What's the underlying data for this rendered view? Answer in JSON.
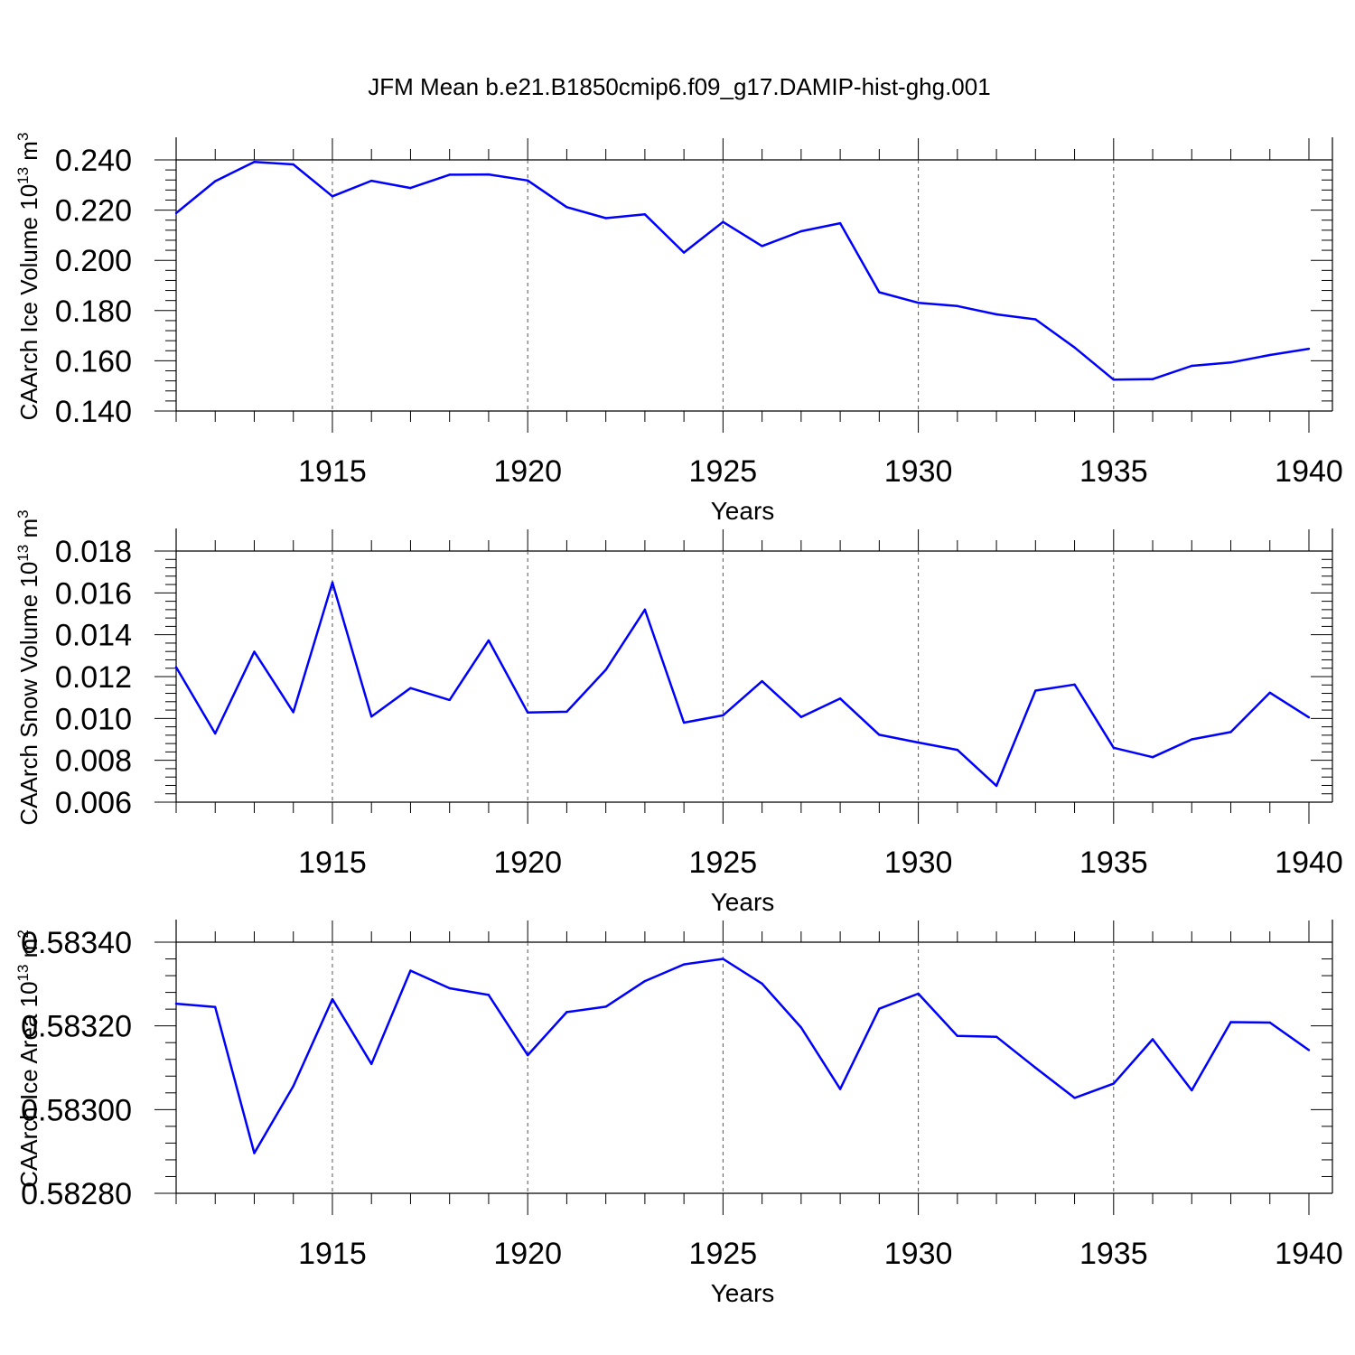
{
  "figure": {
    "title": "JFM Mean b.e21.B1850cmip6.f09_g17.DAMIP-hist-ghg.001",
    "line_color": "#0000ff"
  },
  "chart_data": [
    {
      "type": "line",
      "title": "JFM Mean b.e21.B1850cmip6.f09_g17.DAMIP-hist-ghg.001",
      "xlabel": "Years",
      "ylabel": "CAArch Ice Volume 10",
      "ylabel_sup1": "13",
      "ylabel_mid": " m",
      "ylabel_sup2": "3",
      "xlim": [
        1911,
        1940
      ],
      "ylim": [
        0.14,
        0.24
      ],
      "yticks": [
        0.14,
        0.16,
        0.18,
        0.2,
        0.22,
        0.24
      ],
      "ytick_labels": [
        "0.140",
        "0.160",
        "0.180",
        "0.200",
        "0.220",
        "0.240"
      ],
      "xticks": [
        1915,
        1920,
        1925,
        1930,
        1935,
        1940
      ],
      "xtick_labels": [
        "1915",
        "1920",
        "1925",
        "1930",
        "1935",
        "1940"
      ],
      "grid": "vertical dashed at major x ticks",
      "series": [
        {
          "name": "CAArch Ice Volume",
          "x": [
            1911,
            1912,
            1913,
            1914,
            1915,
            1916,
            1917,
            1918,
            1919,
            1920,
            1921,
            1922,
            1923,
            1924,
            1925,
            1926,
            1927,
            1928,
            1929,
            1930,
            1931,
            1932,
            1933,
            1934,
            1935,
            1936,
            1937,
            1938,
            1939,
            1940
          ],
          "values": [
            0.2188,
            0.2315,
            0.2392,
            0.2382,
            0.2255,
            0.2317,
            0.2288,
            0.2341,
            0.2342,
            0.2318,
            0.2212,
            0.2168,
            0.2183,
            0.2031,
            0.2153,
            0.2057,
            0.2116,
            0.2148,
            0.1873,
            0.1831,
            0.1818,
            0.1785,
            0.1765,
            0.1653,
            0.1525,
            0.1527,
            0.158,
            0.1593,
            0.1623,
            0.1648
          ]
        }
      ]
    },
    {
      "type": "line",
      "xlabel": "Years",
      "ylabel": "CAArch Snow Volume 10",
      "ylabel_sup1": "13",
      "ylabel_mid": " m",
      "ylabel_sup2": "3",
      "xlim": [
        1911,
        1940
      ],
      "ylim": [
        0.006,
        0.018
      ],
      "yticks": [
        0.006,
        0.008,
        0.01,
        0.012,
        0.014,
        0.016,
        0.018
      ],
      "ytick_labels": [
        "0.006",
        "0.008",
        "0.010",
        "0.012",
        "0.014",
        "0.016",
        "0.018"
      ],
      "xticks": [
        1915,
        1920,
        1925,
        1930,
        1935,
        1940
      ],
      "xtick_labels": [
        "1915",
        "1920",
        "1925",
        "1930",
        "1935",
        "1940"
      ],
      "grid": "vertical dashed at major x ticks",
      "series": [
        {
          "name": "CAArch Snow Volume",
          "x": [
            1911,
            1912,
            1913,
            1914,
            1915,
            1916,
            1917,
            1918,
            1919,
            1920,
            1921,
            1922,
            1923,
            1924,
            1925,
            1926,
            1927,
            1928,
            1929,
            1930,
            1931,
            1932,
            1933,
            1934,
            1935,
            1936,
            1937,
            1938,
            1939,
            1940
          ],
          "values": [
            0.01245,
            0.00928,
            0.01319,
            0.0103,
            0.0165,
            0.01009,
            0.01145,
            0.01088,
            0.01373,
            0.01028,
            0.01032,
            0.01233,
            0.0152,
            0.0098,
            0.01015,
            0.01178,
            0.01007,
            0.01095,
            0.00922,
            0.00885,
            0.0085,
            0.00678,
            0.01133,
            0.01162,
            0.0086,
            0.00815,
            0.009,
            0.00935,
            0.01123,
            0.01005
          ]
        }
      ]
    },
    {
      "type": "line",
      "xlabel": "Years",
      "ylabel": "CAArch Ice Area 10",
      "ylabel_sup1": "13",
      "ylabel_mid": " m",
      "ylabel_sup2": "2",
      "xlim": [
        1911,
        1940
      ],
      "ylim": [
        0.5828,
        0.5834
      ],
      "yticks": [
        0.5828,
        0.583,
        0.5832,
        0.5834
      ],
      "ytick_labels": [
        "0.58280",
        "0.58300",
        "0.58320",
        "0.58340"
      ],
      "xticks": [
        1915,
        1920,
        1925,
        1930,
        1935,
        1940
      ],
      "xtick_labels": [
        "1915",
        "1920",
        "1925",
        "1930",
        "1935",
        "1940"
      ],
      "grid": "vertical dashed at major x ticks",
      "series": [
        {
          "name": "CAArch Ice Area",
          "x": [
            1911,
            1912,
            1913,
            1914,
            1915,
            1916,
            1917,
            1918,
            1919,
            1920,
            1921,
            1922,
            1923,
            1924,
            1925,
            1926,
            1927,
            1928,
            1929,
            1930,
            1931,
            1932,
            1933,
            1934,
            1935,
            1936,
            1937,
            1938,
            1939,
            1940
          ],
          "values": [
            0.583253,
            0.583245,
            0.582896,
            0.583056,
            0.583264,
            0.583109,
            0.583332,
            0.58329,
            0.583274,
            0.58313,
            0.583233,
            0.583246,
            0.583307,
            0.583347,
            0.58336,
            0.583301,
            0.583196,
            0.583049,
            0.583241,
            0.583277,
            0.583176,
            0.583174,
            0.5831,
            0.583028,
            0.583062,
            0.583168,
            0.583046,
            0.583209,
            0.583208,
            0.583142
          ]
        }
      ]
    }
  ]
}
